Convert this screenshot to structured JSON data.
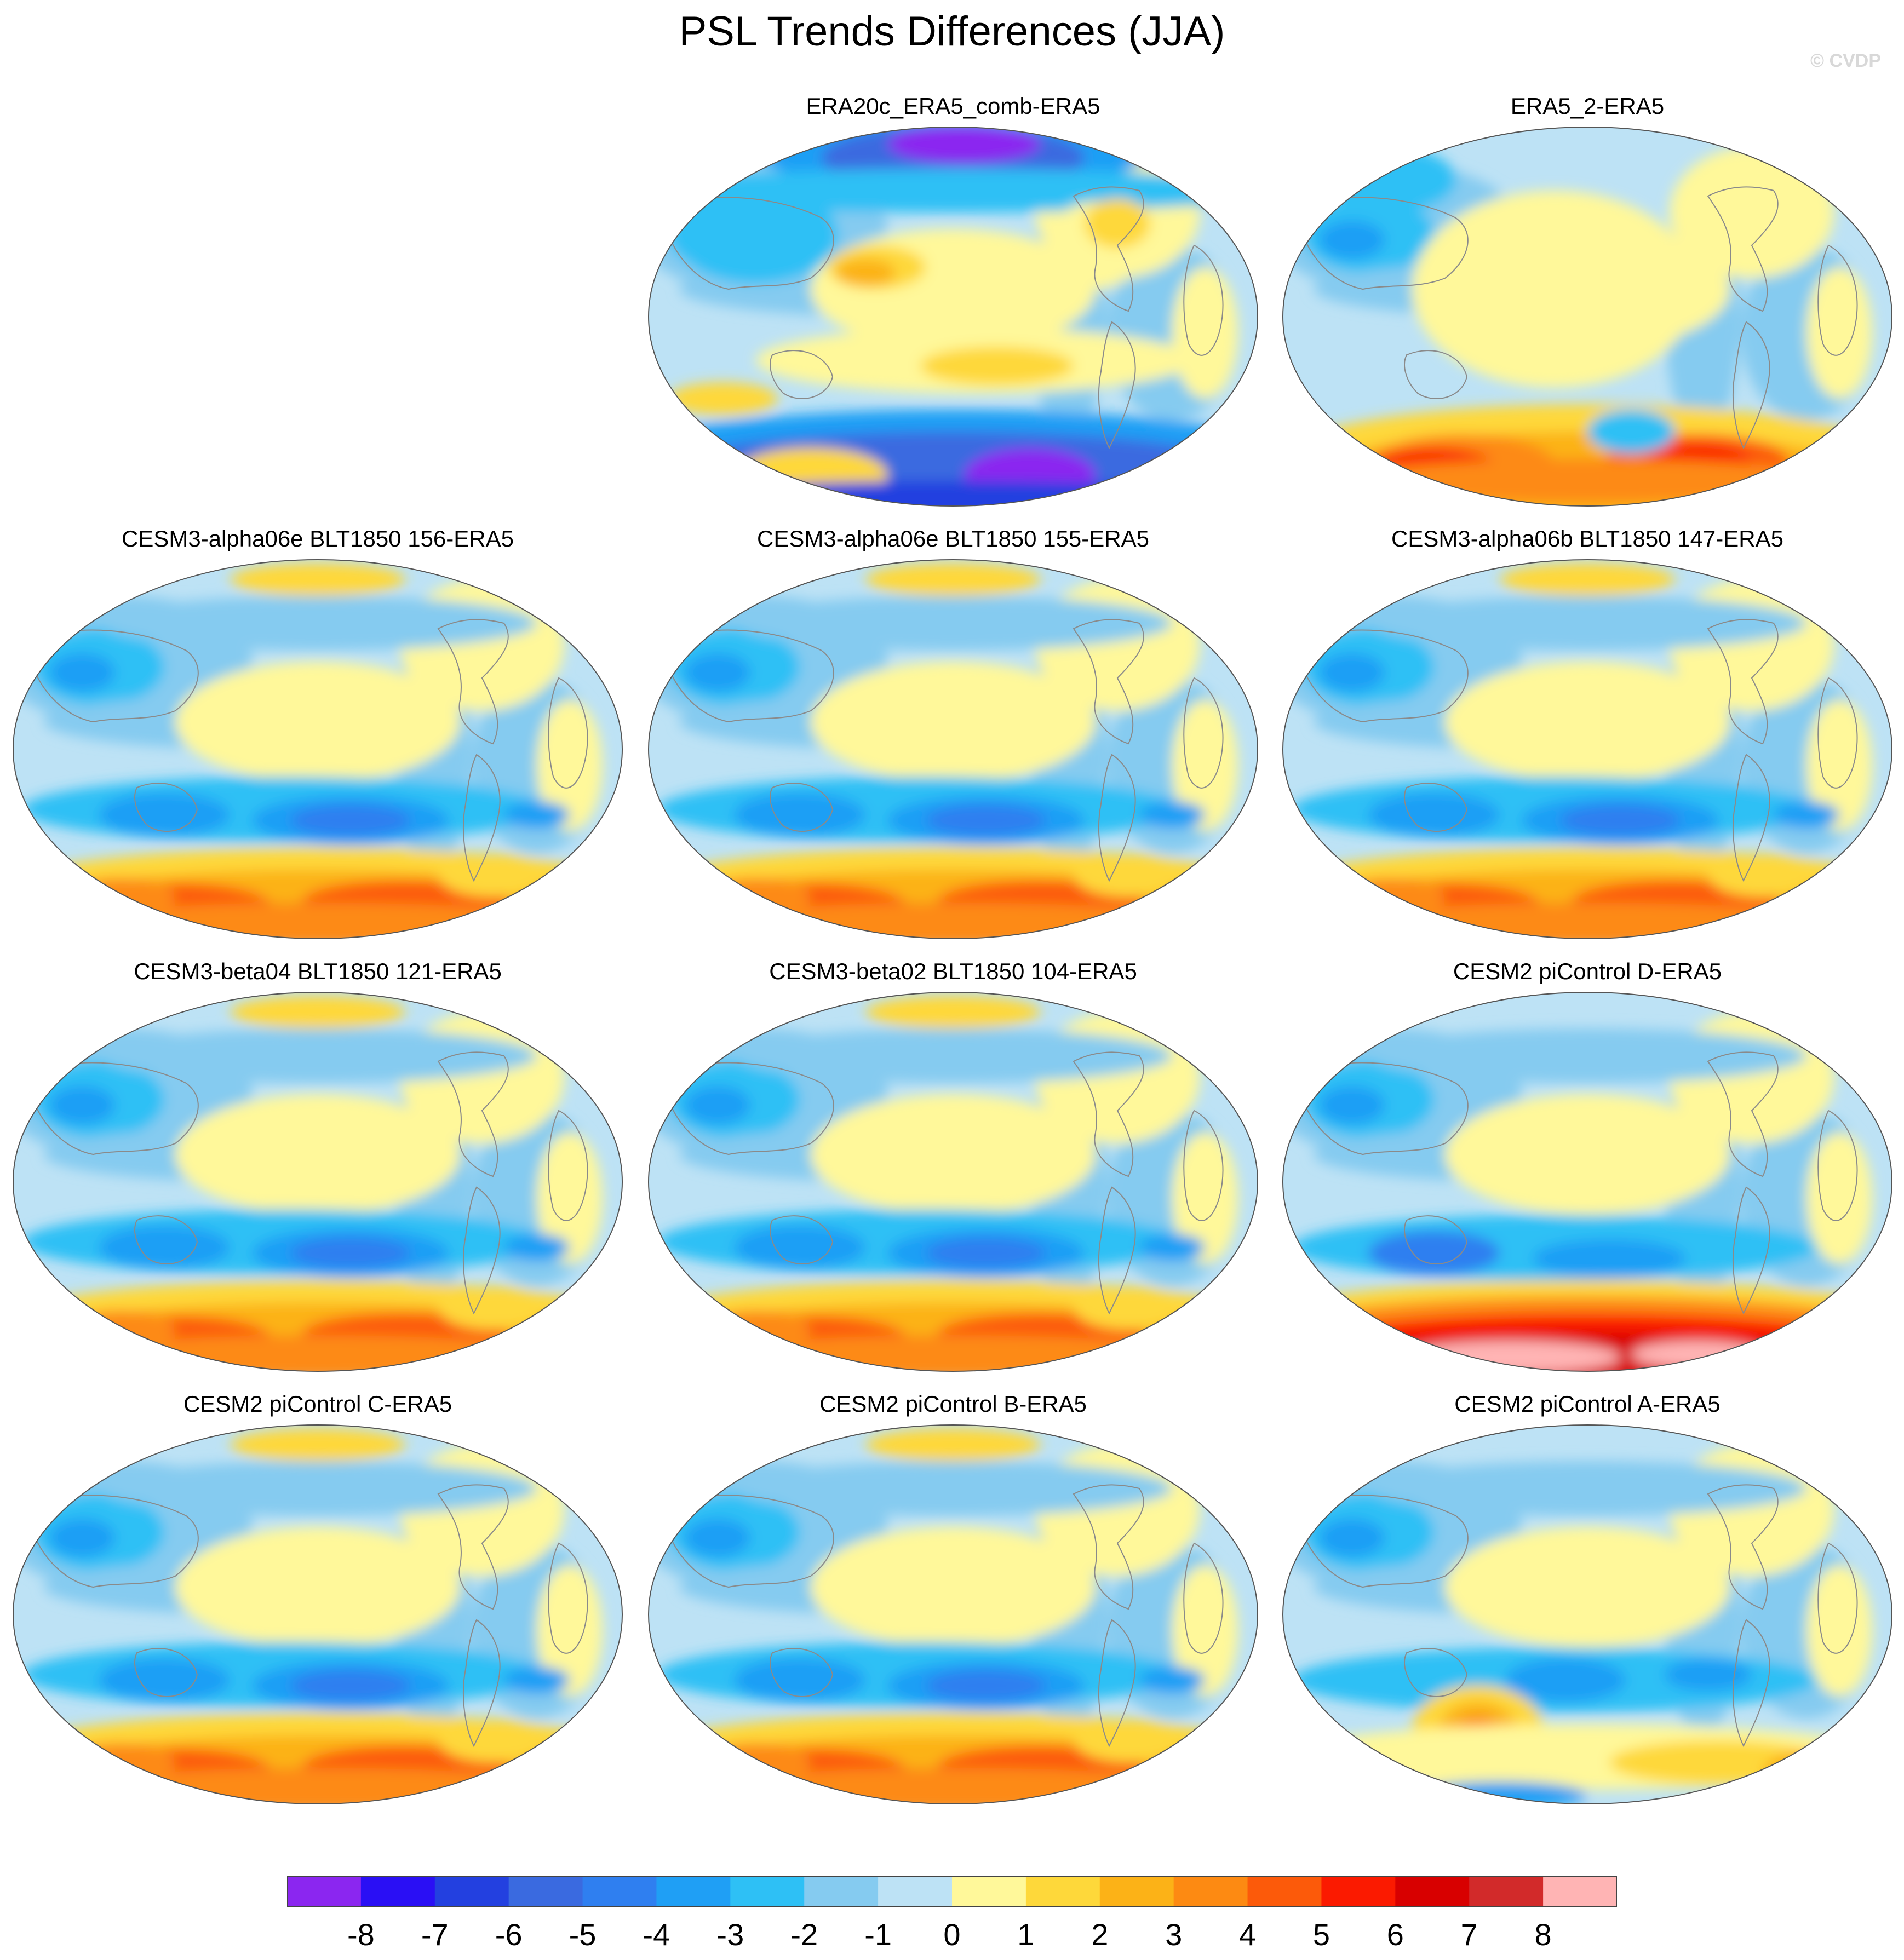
{
  "title": "PSL Trends Differences (JJA)",
  "credit": "© CVDP",
  "colorbar": {
    "colors": [
      "#8b26f0",
      "#2a0ff5",
      "#2340e0",
      "#3a6ae0",
      "#2f7ff0",
      "#1f9ff5",
      "#2ec0f5",
      "#85cbf0",
      "#bde2f5",
      "#fff89a",
      "#fed83a",
      "#fcb217",
      "#fd8a12",
      "#fc5a0a",
      "#fb1a00",
      "#d80000",
      "#d22a2a",
      "#ffb4b4"
    ],
    "labels": [
      "-8",
      "-7",
      "-6",
      "-5",
      "-4",
      "-3",
      "-2",
      "-1",
      "0",
      "1",
      "2",
      "3",
      "4",
      "5",
      "6",
      "7",
      "8"
    ]
  },
  "panels": [
    {
      "title": "ERA20c_ERA5_comb-ERA5",
      "style": "era20c"
    },
    {
      "title": "ERA5_2-ERA5",
      "style": "era5"
    },
    {
      "title": "CESM3-alpha06e BLT1850 156-ERA5",
      "style": "model"
    },
    {
      "title": "CESM3-alpha06e BLT1850 155-ERA5",
      "style": "model"
    },
    {
      "title": "CESM3-alpha06b BLT1850 147-ERA5",
      "style": "model"
    },
    {
      "title": "CESM3-beta04 BLT1850 121-ERA5",
      "style": "model"
    },
    {
      "title": "CESM3-beta02 BLT1850 104-ERA5",
      "style": "model"
    },
    {
      "title": "CESM2 piControl D-ERA5",
      "style": "strong"
    },
    {
      "title": "CESM2 piControl C-ERA5",
      "style": "model"
    },
    {
      "title": "CESM2 piControl B-ERA5",
      "style": "model"
    },
    {
      "title": "CESM2 piControl A-ERA5",
      "style": "weak"
    }
  ]
}
